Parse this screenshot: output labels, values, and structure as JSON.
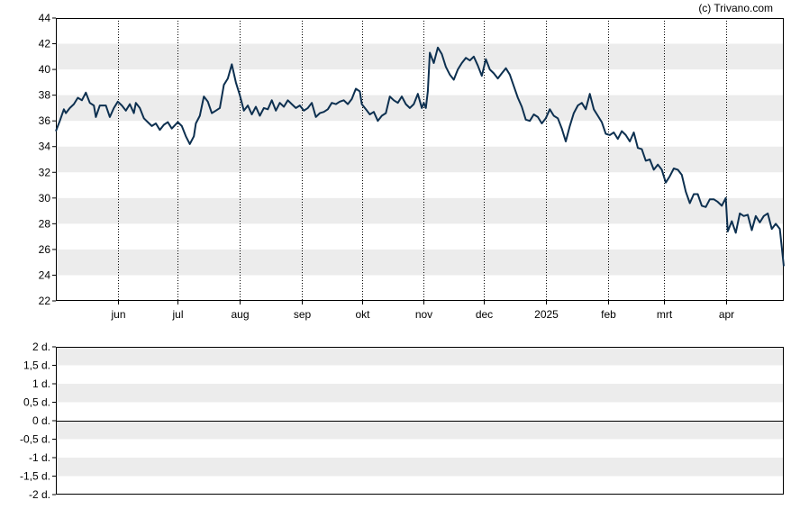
{
  "credit": "(c) Trivano.com",
  "chart_data": [
    {
      "type": "line",
      "title": "",
      "xlabel": "",
      "ylabel": "",
      "ylim": [
        22,
        44
      ],
      "y_ticks": [
        22,
        24,
        26,
        28,
        30,
        32,
        34,
        36,
        38,
        40,
        42,
        44
      ],
      "x_range": [
        "2024-05-01",
        "2025-04-30"
      ],
      "x_ticks": [
        {
          "label": "jun",
          "date": "2024-06-01"
        },
        {
          "label": "jul",
          "date": "2024-07-01"
        },
        {
          "label": "aug",
          "date": "2024-08-01"
        },
        {
          "label": "sep",
          "date": "2024-09-01"
        },
        {
          "label": "okt",
          "date": "2024-10-01"
        },
        {
          "label": "nov",
          "date": "2024-11-01"
        },
        {
          "label": "dec",
          "date": "2024-12-01"
        },
        {
          "label": "2025",
          "date": "2025-01-01"
        },
        {
          "label": "feb",
          "date": "2025-02-01"
        },
        {
          "label": "mrt",
          "date": "2025-03-01"
        },
        {
          "label": "apr",
          "date": "2025-04-01"
        }
      ],
      "grid": "alternating-bands",
      "line_color": "#0d3050",
      "band_color": "#ececec",
      "series": [
        {
          "points": [
            [
              "2024-05-01",
              35.2
            ],
            [
              "2024-05-03",
              36.0
            ],
            [
              "2024-05-05",
              36.9
            ],
            [
              "2024-05-06",
              36.6
            ],
            [
              "2024-05-08",
              37.0
            ],
            [
              "2024-05-10",
              37.3
            ],
            [
              "2024-05-12",
              37.8
            ],
            [
              "2024-05-14",
              37.6
            ],
            [
              "2024-05-16",
              38.2
            ],
            [
              "2024-05-18",
              37.4
            ],
            [
              "2024-05-20",
              37.2
            ],
            [
              "2024-05-21",
              36.3
            ],
            [
              "2024-05-23",
              37.2
            ],
            [
              "2024-05-26",
              37.2
            ],
            [
              "2024-05-28",
              36.3
            ],
            [
              "2024-05-30",
              37.0
            ],
            [
              "2024-06-01",
              37.5
            ],
            [
              "2024-06-03",
              37.2
            ],
            [
              "2024-06-05",
              36.8
            ],
            [
              "2024-06-07",
              37.3
            ],
            [
              "2024-06-09",
              36.6
            ],
            [
              "2024-06-10",
              37.4
            ],
            [
              "2024-06-12",
              37.0
            ],
            [
              "2024-06-14",
              36.2
            ],
            [
              "2024-06-16",
              35.9
            ],
            [
              "2024-06-18",
              35.6
            ],
            [
              "2024-06-20",
              35.8
            ],
            [
              "2024-06-22",
              35.3
            ],
            [
              "2024-06-24",
              35.7
            ],
            [
              "2024-06-26",
              35.9
            ],
            [
              "2024-06-28",
              35.4
            ],
            [
              "2024-07-01",
              35.9
            ],
            [
              "2024-07-03",
              35.6
            ],
            [
              "2024-07-05",
              34.8
            ],
            [
              "2024-07-07",
              34.2
            ],
            [
              "2024-07-09",
              34.8
            ],
            [
              "2024-07-10",
              35.8
            ],
            [
              "2024-07-12",
              36.4
            ],
            [
              "2024-07-14",
              37.9
            ],
            [
              "2024-07-16",
              37.5
            ],
            [
              "2024-07-18",
              36.6
            ],
            [
              "2024-07-20",
              36.8
            ],
            [
              "2024-07-22",
              37.0
            ],
            [
              "2024-07-24",
              38.8
            ],
            [
              "2024-07-26",
              39.3
            ],
            [
              "2024-07-28",
              40.4
            ],
            [
              "2024-07-30",
              39.0
            ],
            [
              "2024-08-01",
              38.0
            ],
            [
              "2024-08-03",
              36.8
            ],
            [
              "2024-08-05",
              37.2
            ],
            [
              "2024-08-07",
              36.5
            ],
            [
              "2024-08-09",
              37.1
            ],
            [
              "2024-08-11",
              36.4
            ],
            [
              "2024-08-13",
              37.0
            ],
            [
              "2024-08-15",
              36.9
            ],
            [
              "2024-08-17",
              37.6
            ],
            [
              "2024-08-19",
              36.8
            ],
            [
              "2024-08-21",
              37.4
            ],
            [
              "2024-08-23",
              37.1
            ],
            [
              "2024-08-25",
              37.6
            ],
            [
              "2024-08-27",
              37.3
            ],
            [
              "2024-08-29",
              37.0
            ],
            [
              "2024-08-31",
              37.2
            ],
            [
              "2024-09-02",
              36.8
            ],
            [
              "2024-09-04",
              37.0
            ],
            [
              "2024-09-06",
              37.4
            ],
            [
              "2024-09-08",
              36.3
            ],
            [
              "2024-09-10",
              36.6
            ],
            [
              "2024-09-12",
              36.7
            ],
            [
              "2024-09-14",
              36.9
            ],
            [
              "2024-09-16",
              37.4
            ],
            [
              "2024-09-18",
              37.3
            ],
            [
              "2024-09-20",
              37.5
            ],
            [
              "2024-09-22",
              37.6
            ],
            [
              "2024-09-24",
              37.3
            ],
            [
              "2024-09-26",
              37.7
            ],
            [
              "2024-09-28",
              38.5
            ],
            [
              "2024-09-30",
              38.3
            ],
            [
              "2024-10-01",
              37.3
            ],
            [
              "2024-10-03",
              36.9
            ],
            [
              "2024-10-05",
              36.5
            ],
            [
              "2024-10-07",
              36.7
            ],
            [
              "2024-10-09",
              36.0
            ],
            [
              "2024-10-11",
              36.4
            ],
            [
              "2024-10-13",
              36.6
            ],
            [
              "2024-10-15",
              37.9
            ],
            [
              "2024-10-17",
              37.6
            ],
            [
              "2024-10-19",
              37.4
            ],
            [
              "2024-10-21",
              37.9
            ],
            [
              "2024-10-23",
              37.3
            ],
            [
              "2024-10-25",
              37.0
            ],
            [
              "2024-10-27",
              37.3
            ],
            [
              "2024-10-29",
              38.1
            ],
            [
              "2024-10-31",
              37.0
            ],
            [
              "2024-11-01",
              37.4
            ],
            [
              "2024-11-02",
              37.0
            ],
            [
              "2024-11-03",
              38.3
            ],
            [
              "2024-11-04",
              41.3
            ],
            [
              "2024-11-06",
              40.5
            ],
            [
              "2024-11-08",
              41.7
            ],
            [
              "2024-11-10",
              41.2
            ],
            [
              "2024-11-12",
              40.2
            ],
            [
              "2024-11-14",
              39.6
            ],
            [
              "2024-11-16",
              39.2
            ],
            [
              "2024-11-18",
              40.0
            ],
            [
              "2024-11-20",
              40.5
            ],
            [
              "2024-11-22",
              40.9
            ],
            [
              "2024-11-24",
              40.7
            ],
            [
              "2024-11-26",
              41.0
            ],
            [
              "2024-11-28",
              40.3
            ],
            [
              "2024-11-30",
              39.5
            ],
            [
              "2024-12-02",
              40.8
            ],
            [
              "2024-12-04",
              40.0
            ],
            [
              "2024-12-06",
              39.7
            ],
            [
              "2024-12-08",
              39.3
            ],
            [
              "2024-12-10",
              39.7
            ],
            [
              "2024-12-12",
              40.1
            ],
            [
              "2024-12-14",
              39.6
            ],
            [
              "2024-12-16",
              38.7
            ],
            [
              "2024-12-18",
              37.8
            ],
            [
              "2024-12-20",
              37.1
            ],
            [
              "2024-12-22",
              36.1
            ],
            [
              "2024-12-24",
              36.0
            ],
            [
              "2024-12-26",
              36.5
            ],
            [
              "2024-12-28",
              36.3
            ],
            [
              "2024-12-30",
              35.8
            ],
            [
              "2025-01-01",
              36.2
            ],
            [
              "2025-01-03",
              36.9
            ],
            [
              "2025-01-05",
              36.4
            ],
            [
              "2025-01-07",
              36.2
            ],
            [
              "2025-01-09",
              35.4
            ],
            [
              "2025-01-11",
              34.4
            ],
            [
              "2025-01-13",
              35.6
            ],
            [
              "2025-01-15",
              36.6
            ],
            [
              "2025-01-17",
              37.2
            ],
            [
              "2025-01-19",
              37.4
            ],
            [
              "2025-01-21",
              36.9
            ],
            [
              "2025-01-23",
              38.1
            ],
            [
              "2025-01-25",
              36.9
            ],
            [
              "2025-01-27",
              36.4
            ],
            [
              "2025-01-29",
              35.9
            ],
            [
              "2025-01-31",
              35.0
            ],
            [
              "2025-02-02",
              34.9
            ],
            [
              "2025-02-04",
              35.1
            ],
            [
              "2025-02-06",
              34.6
            ],
            [
              "2025-02-08",
              35.2
            ],
            [
              "2025-02-10",
              34.9
            ],
            [
              "2025-02-12",
              34.4
            ],
            [
              "2025-02-14",
              35.1
            ],
            [
              "2025-02-16",
              33.9
            ],
            [
              "2025-02-18",
              33.8
            ],
            [
              "2025-02-20",
              32.9
            ],
            [
              "2025-02-22",
              33.0
            ],
            [
              "2025-02-24",
              32.2
            ],
            [
              "2025-02-26",
              32.6
            ],
            [
              "2025-02-28",
              32.2
            ],
            [
              "2025-03-02",
              31.2
            ],
            [
              "2025-03-04",
              31.7
            ],
            [
              "2025-03-06",
              32.3
            ],
            [
              "2025-03-08",
              32.2
            ],
            [
              "2025-03-10",
              31.8
            ],
            [
              "2025-03-12",
              30.5
            ],
            [
              "2025-03-14",
              29.6
            ],
            [
              "2025-03-16",
              30.3
            ],
            [
              "2025-03-18",
              30.3
            ],
            [
              "2025-03-20",
              29.4
            ],
            [
              "2025-03-22",
              29.3
            ],
            [
              "2025-03-24",
              29.9
            ],
            [
              "2025-03-26",
              29.9
            ],
            [
              "2025-03-28",
              29.7
            ],
            [
              "2025-03-30",
              29.4
            ],
            [
              "2025-04-01",
              30.0
            ],
            [
              "2025-04-02",
              27.4
            ],
            [
              "2025-04-04",
              28.2
            ],
            [
              "2025-04-06",
              27.3
            ],
            [
              "2025-04-08",
              28.8
            ],
            [
              "2025-04-10",
              28.6
            ],
            [
              "2025-04-12",
              28.7
            ],
            [
              "2025-04-14",
              27.5
            ],
            [
              "2025-04-16",
              28.6
            ],
            [
              "2025-04-18",
              28.1
            ],
            [
              "2025-04-20",
              28.6
            ],
            [
              "2025-04-22",
              28.8
            ],
            [
              "2025-04-24",
              27.6
            ],
            [
              "2025-04-26",
              28.0
            ],
            [
              "2025-04-28",
              27.6
            ],
            [
              "2025-04-30",
              24.7
            ]
          ]
        }
      ]
    },
    {
      "type": "line",
      "title": "",
      "ylim": [
        -2,
        2
      ],
      "y_ticks": [
        "2 d.",
        "1,5 d.",
        "1 d.",
        "0,5 d.",
        "0 d.",
        "-0,5 d.",
        "-1 d.",
        "-1,5 d.",
        "-2 d."
      ],
      "y_values": [
        2,
        1.5,
        1,
        0.5,
        0,
        -0.5,
        -1,
        -1.5,
        -2
      ],
      "zero_line": 0,
      "grid": "alternating-bands",
      "series": []
    }
  ]
}
